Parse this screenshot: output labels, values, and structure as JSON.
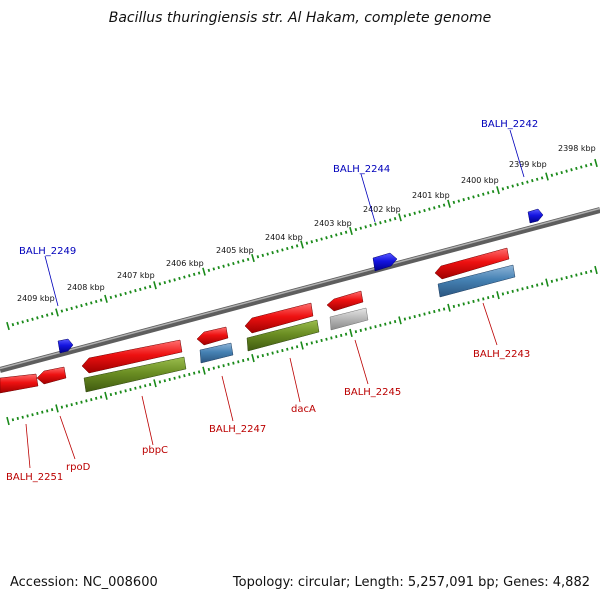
{
  "title": "Bacillus thuringiensis str. Al Hakam, complete genome",
  "accession": "Accession: NC_008600",
  "summary": "Topology: circular; Length: 5,257,091 bp; Genes: 4,882",
  "colors": {
    "backbone": "#808080",
    "tick": "#1a8a1a",
    "forward_gene": "#1414e0",
    "reverse_gene": "#ee1111",
    "green_cds": "#6b8e23",
    "blue_cds": "#4682b4",
    "gray_cds": "#bbbbbb",
    "forward_label": "#0000bb",
    "reverse_label": "#bb0000"
  },
  "scale_labels": [
    "2398 kbp",
    "2399 kbp",
    "2400 kbp",
    "2401 kbp",
    "2402 kbp",
    "2403 kbp",
    "2404 kbp",
    "2405 kbp",
    "2406 kbp",
    "2407 kbp",
    "2408 kbp",
    "2409 kbp"
  ],
  "forward_genes": [
    {
      "name": "BALH_2242"
    },
    {
      "name": "BALH_2244"
    },
    {
      "name": "BALH_2249"
    }
  ],
  "reverse_genes": [
    {
      "name": "BALH_2251"
    },
    {
      "name": "rpoD"
    },
    {
      "name": "pbpC"
    },
    {
      "name": "BALH_2247"
    },
    {
      "name": "dacA"
    },
    {
      "name": "BALH_2245"
    },
    {
      "name": "BALH_2243"
    }
  ]
}
